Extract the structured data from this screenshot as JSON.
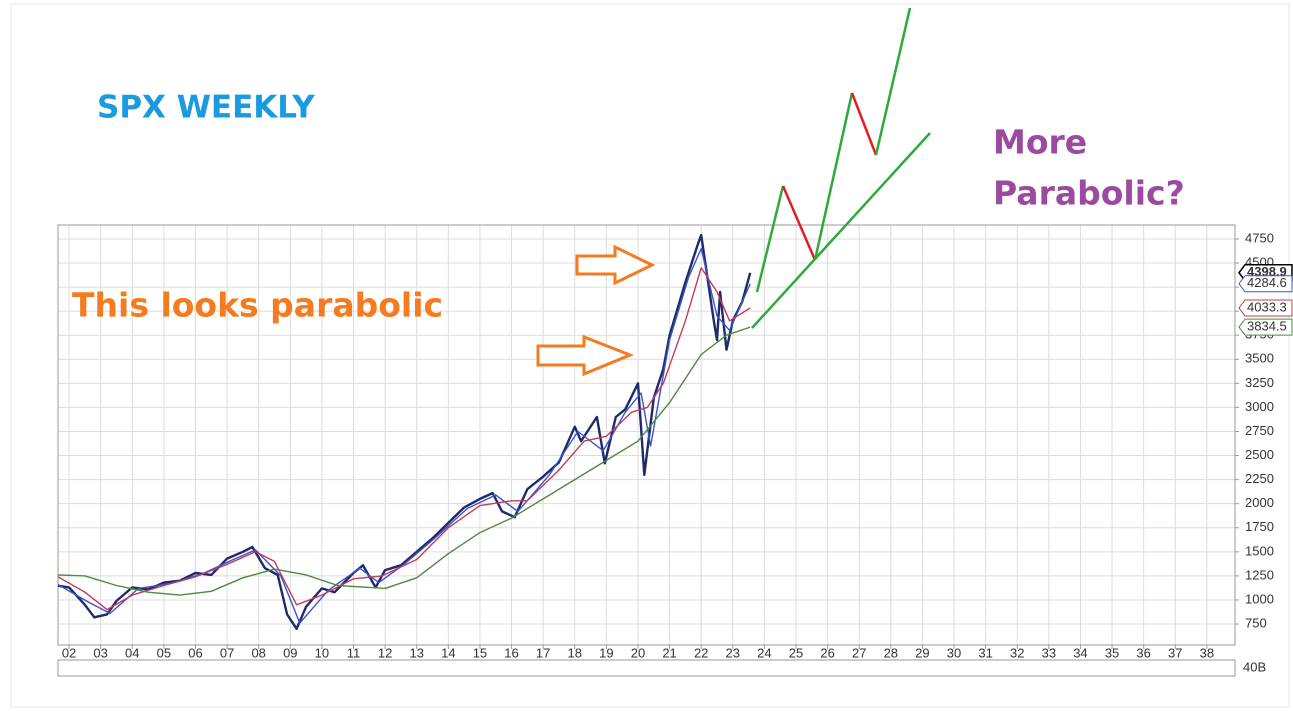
{
  "chart_data": {
    "type": "line",
    "annotations": [
      "SPX WEEKLY",
      "This looks parabolic",
      "More",
      "Parabolic?"
    ],
    "volume_label": "40B",
    "xlim": [
      2001.65,
      2038.89
    ],
    "ylim": [
      532,
      4895
    ],
    "grid": true,
    "xticks": [
      {
        "value": 2002,
        "label": "02"
      },
      {
        "value": 2003,
        "label": "03"
      },
      {
        "value": 2004,
        "label": "04"
      },
      {
        "value": 2005,
        "label": "05"
      },
      {
        "value": 2006,
        "label": "06"
      },
      {
        "value": 2007,
        "label": "07"
      },
      {
        "value": 2008,
        "label": "08"
      },
      {
        "value": 2009,
        "label": "09"
      },
      {
        "value": 2010,
        "label": "10"
      },
      {
        "value": 2011,
        "label": "11"
      },
      {
        "value": 2012,
        "label": "12"
      },
      {
        "value": 2013,
        "label": "13"
      },
      {
        "value": 2014,
        "label": "14"
      },
      {
        "value": 2015,
        "label": "15"
      },
      {
        "value": 2016,
        "label": "16"
      },
      {
        "value": 2017,
        "label": "17"
      },
      {
        "value": 2018,
        "label": "18"
      },
      {
        "value": 2019,
        "label": "19"
      },
      {
        "value": 2020,
        "label": "20"
      },
      {
        "value": 2021,
        "label": "21"
      },
      {
        "value": 2022,
        "label": "22"
      },
      {
        "value": 2023,
        "label": "23"
      },
      {
        "value": 2024,
        "label": "24"
      },
      {
        "value": 2025,
        "label": "25"
      },
      {
        "value": 2026,
        "label": "26"
      },
      {
        "value": 2027,
        "label": "27"
      },
      {
        "value": 2028,
        "label": "28"
      },
      {
        "value": 2029,
        "label": "29"
      },
      {
        "value": 2030,
        "label": "30"
      },
      {
        "value": 2031,
        "label": "31"
      },
      {
        "value": 2032,
        "label": "32"
      },
      {
        "value": 2033,
        "label": "33"
      },
      {
        "value": 2034,
        "label": "34"
      },
      {
        "value": 2035,
        "label": "35"
      },
      {
        "value": 2036,
        "label": "36"
      },
      {
        "value": 2037,
        "label": "37"
      },
      {
        "value": 2038,
        "label": "38"
      }
    ],
    "yticks": [
      750,
      1000,
      1250,
      1500,
      1750,
      2000,
      2250,
      2500,
      2750,
      3000,
      3250,
      3500,
      3750,
      4000,
      4250,
      4500,
      4750
    ],
    "series": [
      {
        "color": "#1f2a6b",
        "border": "#000000",
        "x": [
          2001.6,
          2002.0,
          2002.5,
          2002.8,
          2003.2,
          2003.5,
          2004.0,
          2004.5,
          2005.0,
          2005.5,
          2006.0,
          2006.5,
          2007.0,
          2007.5,
          2007.8,
          2008.2,
          2008.6,
          2008.9,
          2009.2,
          2009.5,
          2010.0,
          2010.4,
          2011.0,
          2011.3,
          2011.7,
          2012.0,
          2012.5,
          2013.0,
          2013.5,
          2014.0,
          2014.5,
          2015.0,
          2015.4,
          2015.7,
          2016.1,
          2016.5,
          2017.0,
          2017.5,
          2018.0,
          2018.2,
          2018.7,
          2018.95,
          2019.3,
          2019.6,
          2020.0,
          2020.2,
          2020.5,
          2020.8,
          2021.0,
          2021.5,
          2021.9,
          2022.0,
          2022.4,
          2022.5,
          2022.6,
          2022.8,
          2023.0,
          2023.3,
          2023.55
        ],
        "values": [
          1150,
          1130,
          950,
          820,
          850,
          990,
          1130,
          1110,
          1180,
          1200,
          1280,
          1260,
          1430,
          1500,
          1550,
          1330,
          1260,
          850,
          700,
          930,
          1120,
          1080,
          1280,
          1360,
          1130,
          1310,
          1360,
          1500,
          1640,
          1800,
          1960,
          2050,
          2110,
          1920,
          1860,
          2150,
          2280,
          2430,
          2800,
          2650,
          2900,
          2420,
          2900,
          2980,
          3250,
          2300,
          3100,
          3400,
          3750,
          4300,
          4700,
          4790,
          3900,
          3700,
          4200,
          3600,
          3900,
          4100,
          4398.9
        ]
      },
      {
        "color": "#3a55c8",
        "border": "#3a55c8",
        "x": [
          2001.6,
          2002.6,
          2003.3,
          2004.2,
          2005.2,
          2006.2,
          2007.2,
          2007.9,
          2008.7,
          2009.3,
          2010.2,
          2011.2,
          2011.8,
          2012.6,
          2013.6,
          2014.6,
          2015.5,
          2016.2,
          2017.2,
          2018.1,
          2018.9,
          2019.6,
          2020.1,
          2020.4,
          2021.0,
          2021.6,
          2022.0,
          2022.5,
          2022.9,
          2023.55
        ],
        "values": [
          1170,
          980,
          860,
          1120,
          1170,
          1270,
          1420,
          1520,
          1250,
          760,
          1100,
          1330,
          1180,
          1370,
          1650,
          1950,
          2090,
          1920,
          2300,
          2750,
          2550,
          2950,
          3150,
          2600,
          3700,
          4350,
          4650,
          3950,
          3800,
          4284.6
        ]
      },
      {
        "color": "#c23b5a",
        "border": "#c23b5a",
        "x": [
          2001.6,
          2002.5,
          2003.2,
          2004.0,
          2005.0,
          2006.0,
          2007.0,
          2007.9,
          2008.5,
          2009.2,
          2010.0,
          2011.0,
          2011.9,
          2013.0,
          2014.0,
          2015.0,
          2016.0,
          2016.5,
          2017.5,
          2018.3,
          2019.0,
          2019.8,
          2020.3,
          2020.8,
          2021.5,
          2022.0,
          2022.5,
          2022.9,
          2023.55
        ],
        "values": [
          1250,
          1080,
          900,
          1050,
          1150,
          1240,
          1370,
          1500,
          1400,
          950,
          1050,
          1220,
          1250,
          1420,
          1750,
          1980,
          2030,
          2030,
          2350,
          2650,
          2700,
          2950,
          3000,
          3250,
          3900,
          4450,
          4200,
          3900,
          4033.3
        ]
      },
      {
        "color": "#4e8a3e",
        "border": "#4e8a3e",
        "x": [
          2001.6,
          2002.5,
          2003.5,
          2004.5,
          2005.5,
          2006.5,
          2007.5,
          2008.5,
          2009.5,
          2010.5,
          2011.5,
          2012.0,
          2013.0,
          2014.0,
          2015.0,
          2016.0,
          2017.0,
          2018.0,
          2019.0,
          2020.0,
          2021.0,
          2022.0,
          2022.8,
          2023.55
        ],
        "values": [
          1260,
          1250,
          1150,
          1080,
          1050,
          1090,
          1230,
          1320,
          1260,
          1150,
          1130,
          1120,
          1230,
          1480,
          1700,
          1850,
          2050,
          2250,
          2450,
          2650,
          3050,
          3550,
          3750,
          3834.5
        ]
      }
    ]
  }
}
